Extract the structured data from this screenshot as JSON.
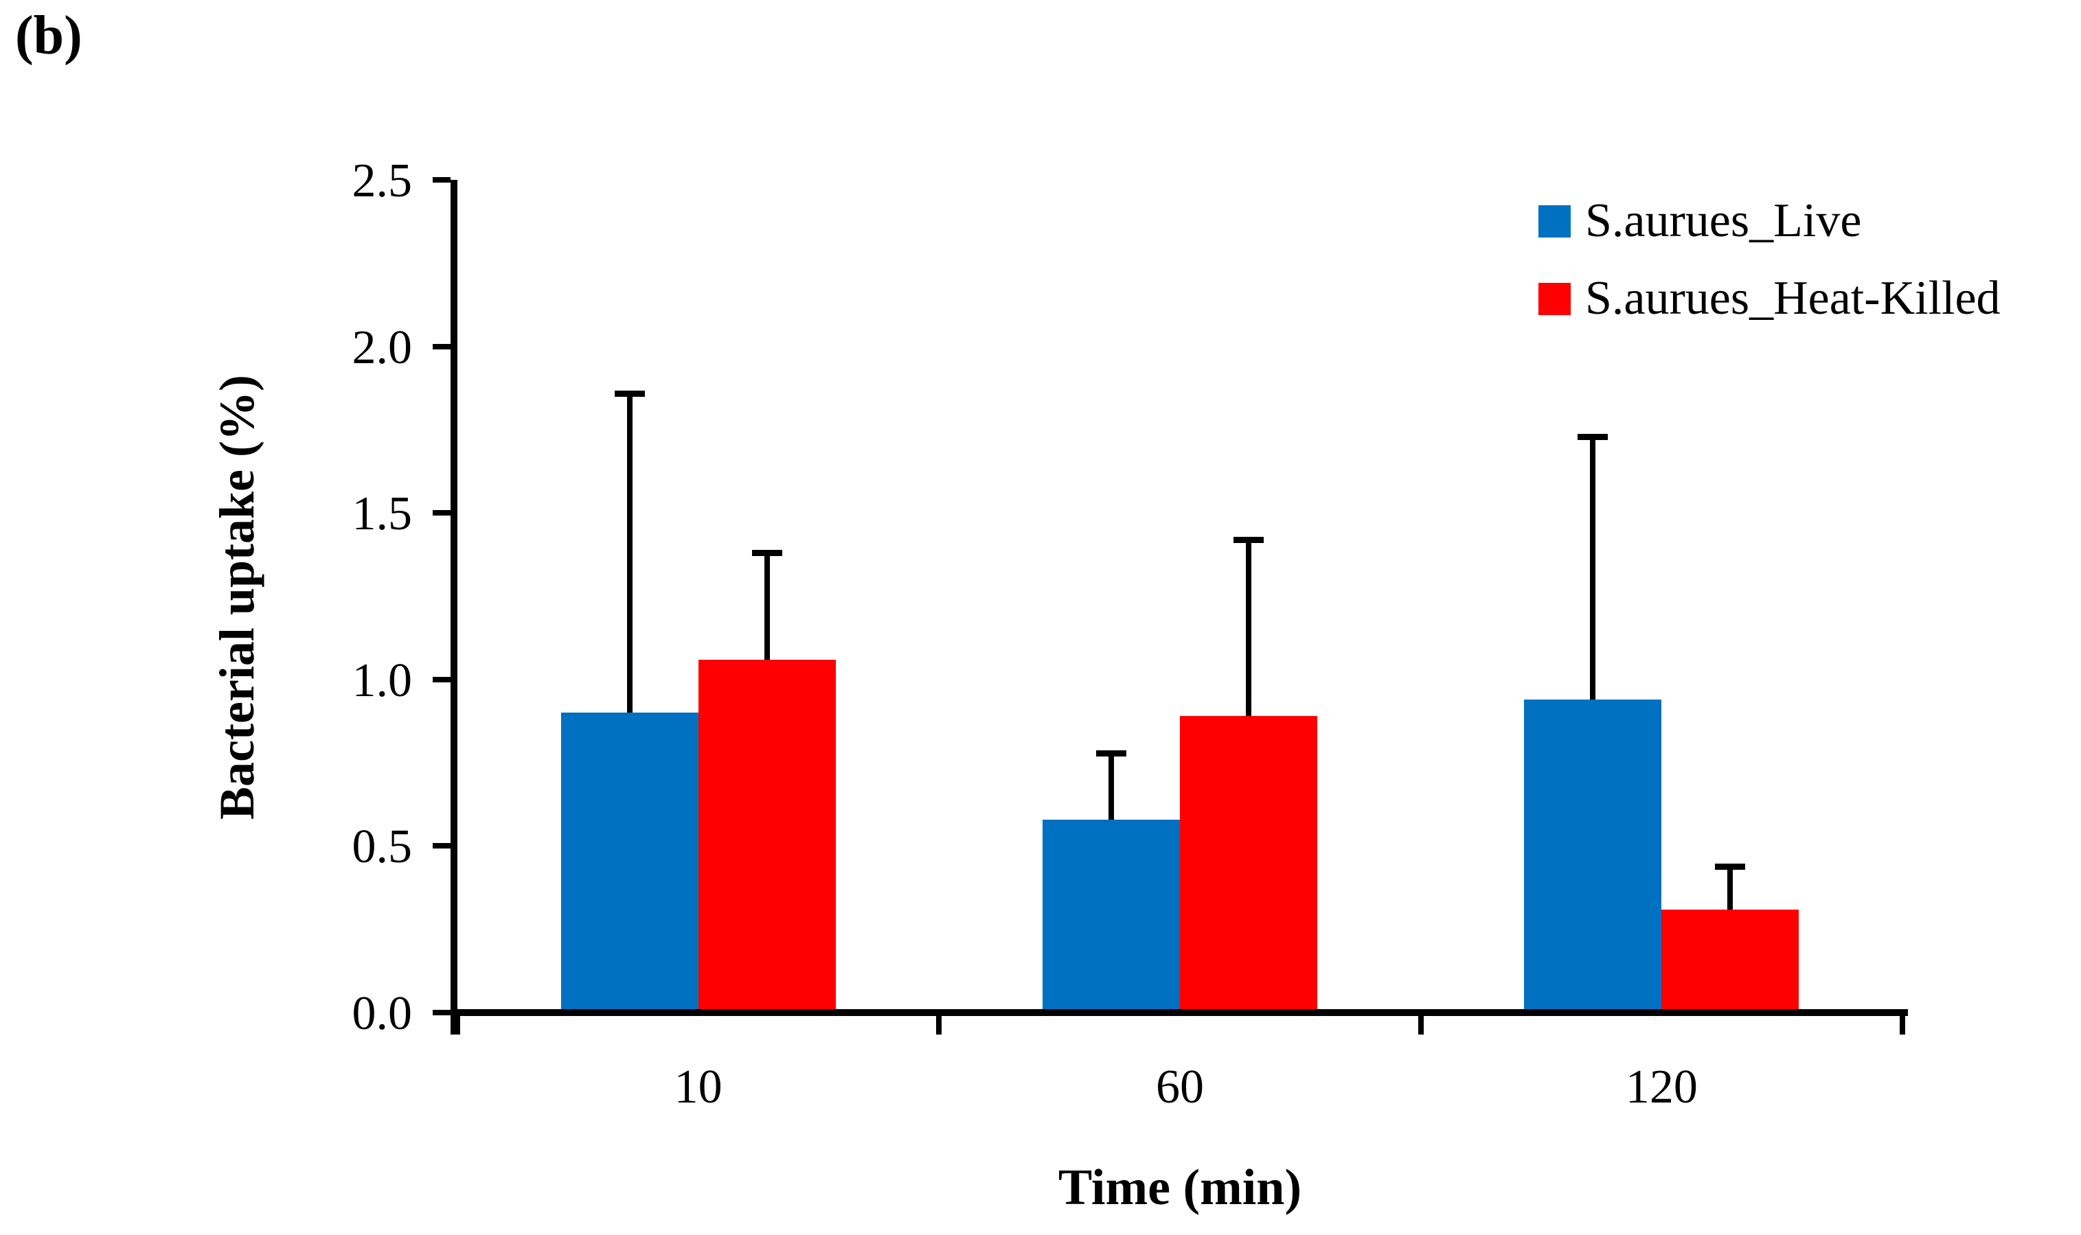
{
  "figure": {
    "panel_label": "(b)",
    "background": "#ffffff",
    "text_color": "#000000"
  },
  "chart_data": {
    "type": "bar",
    "title": "",
    "xlabel": "Time (min)",
    "ylabel": "Bacterial uptake (%)",
    "categories": [
      "10",
      "60",
      "120"
    ],
    "series": [
      {
        "name": "S.aurues_Live",
        "color": "#0070C0",
        "values": [
          0.9,
          0.58,
          0.94
        ],
        "errors_plus": [
          0.96,
          0.2,
          0.79
        ]
      },
      {
        "name": "S.aurues_Heat-Killed",
        "color": "#FF0000",
        "values": [
          1.06,
          0.89,
          0.31
        ],
        "errors_plus": [
          0.32,
          0.53,
          0.13
        ]
      }
    ],
    "ylim": [
      0,
      2.5
    ],
    "yticks": [
      "0.0",
      "0.5",
      "1.0",
      "1.5",
      "2.0",
      "2.5"
    ],
    "grid": false,
    "legend_position": "top-right",
    "error_bars": "plus-only",
    "axis_color": "#000000"
  }
}
